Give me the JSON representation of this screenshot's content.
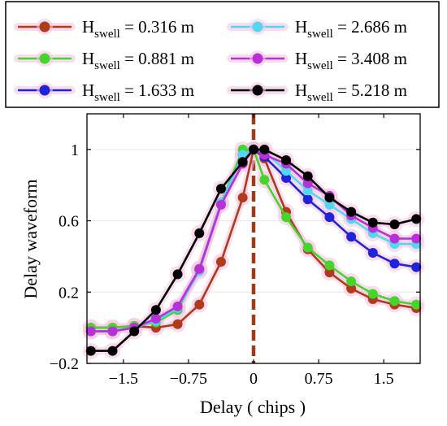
{
  "chart_data": {
    "type": "line",
    "xlabel": "Delay ( chips )",
    "ylabel": "Delay waveform",
    "xlim": [
      -1.92,
      1.92
    ],
    "ylim": [
      -0.2,
      1.2
    ],
    "xticks": [
      -1.5,
      -0.75,
      0,
      0.75,
      1.5
    ],
    "xtick_labels": [
      "−1.5",
      "−0.75",
      "0",
      "0.75",
      "1.5"
    ],
    "yticks": [
      -0.2,
      0.2,
      0.6,
      1
    ],
    "ytick_labels": [
      "−0.2",
      "0.2",
      "0.6",
      "1"
    ],
    "grid": true,
    "legend_position": "top",
    "reference_line": {
      "x": 0,
      "style": "dashed",
      "color": "#9b3a1c"
    },
    "x": [
      -1.875,
      -1.625,
      -1.375,
      -1.125,
      -0.875,
      -0.625,
      -0.375,
      -0.125,
      0,
      0.125,
      0.375,
      0.625,
      0.875,
      1.125,
      1.375,
      1.625,
      1.875
    ],
    "series": [
      {
        "name_main": "H",
        "name_sub": "swell",
        "name_rest": " = 0.316 m",
        "color": "#b03a1a",
        "values": [
          0.0,
          0.0,
          0.01,
          0.0,
          0.02,
          0.13,
          0.37,
          0.73,
          1.0,
          0.95,
          0.65,
          0.44,
          0.31,
          0.22,
          0.16,
          0.13,
          0.11
        ]
      },
      {
        "name_main": "H",
        "name_sub": "swell",
        "name_rest": " = 0.881 m",
        "color": "#44d62c",
        "values": [
          0.0,
          0.0,
          0.01,
          0.03,
          0.1,
          0.33,
          0.7,
          1.0,
          1.0,
          0.83,
          0.62,
          0.45,
          0.35,
          0.26,
          0.19,
          0.15,
          0.13
        ]
      },
      {
        "name_main": "H",
        "name_sub": "swell",
        "name_rest": " = 1.633 m",
        "color": "#1f24d8",
        "values": [
          -0.02,
          -0.02,
          0.0,
          0.05,
          0.11,
          0.32,
          0.7,
          0.97,
          1.0,
          0.96,
          0.84,
          0.72,
          0.62,
          0.51,
          0.42,
          0.36,
          0.34
        ]
      },
      {
        "name_main": "H",
        "name_sub": "swell",
        "name_rest": " = 2.686 m",
        "color": "#4fd8ee",
        "values": [
          -0.02,
          -0.02,
          0.0,
          0.04,
          0.11,
          0.32,
          0.7,
          0.97,
          1.0,
          0.99,
          0.88,
          0.77,
          0.69,
          0.61,
          0.53,
          0.47,
          0.47
        ]
      },
      {
        "name_main": "H",
        "name_sub": "swell",
        "name_rest": " = 3.408 m",
        "color": "#b830d8",
        "values": [
          -0.02,
          -0.02,
          0.0,
          0.05,
          0.12,
          0.33,
          0.69,
          0.92,
          1.0,
          0.97,
          0.92,
          0.81,
          0.74,
          0.63,
          0.56,
          0.5,
          0.5
        ]
      },
      {
        "name_main": "H",
        "name_sub": "swell",
        "name_rest": " = 5.218 m",
        "color": "#000000",
        "values": [
          -0.13,
          -0.13,
          -0.02,
          0.1,
          0.3,
          0.53,
          0.78,
          0.93,
          1.0,
          1.0,
          0.94,
          0.85,
          0.73,
          0.65,
          0.59,
          0.58,
          0.61
        ]
      }
    ]
  }
}
